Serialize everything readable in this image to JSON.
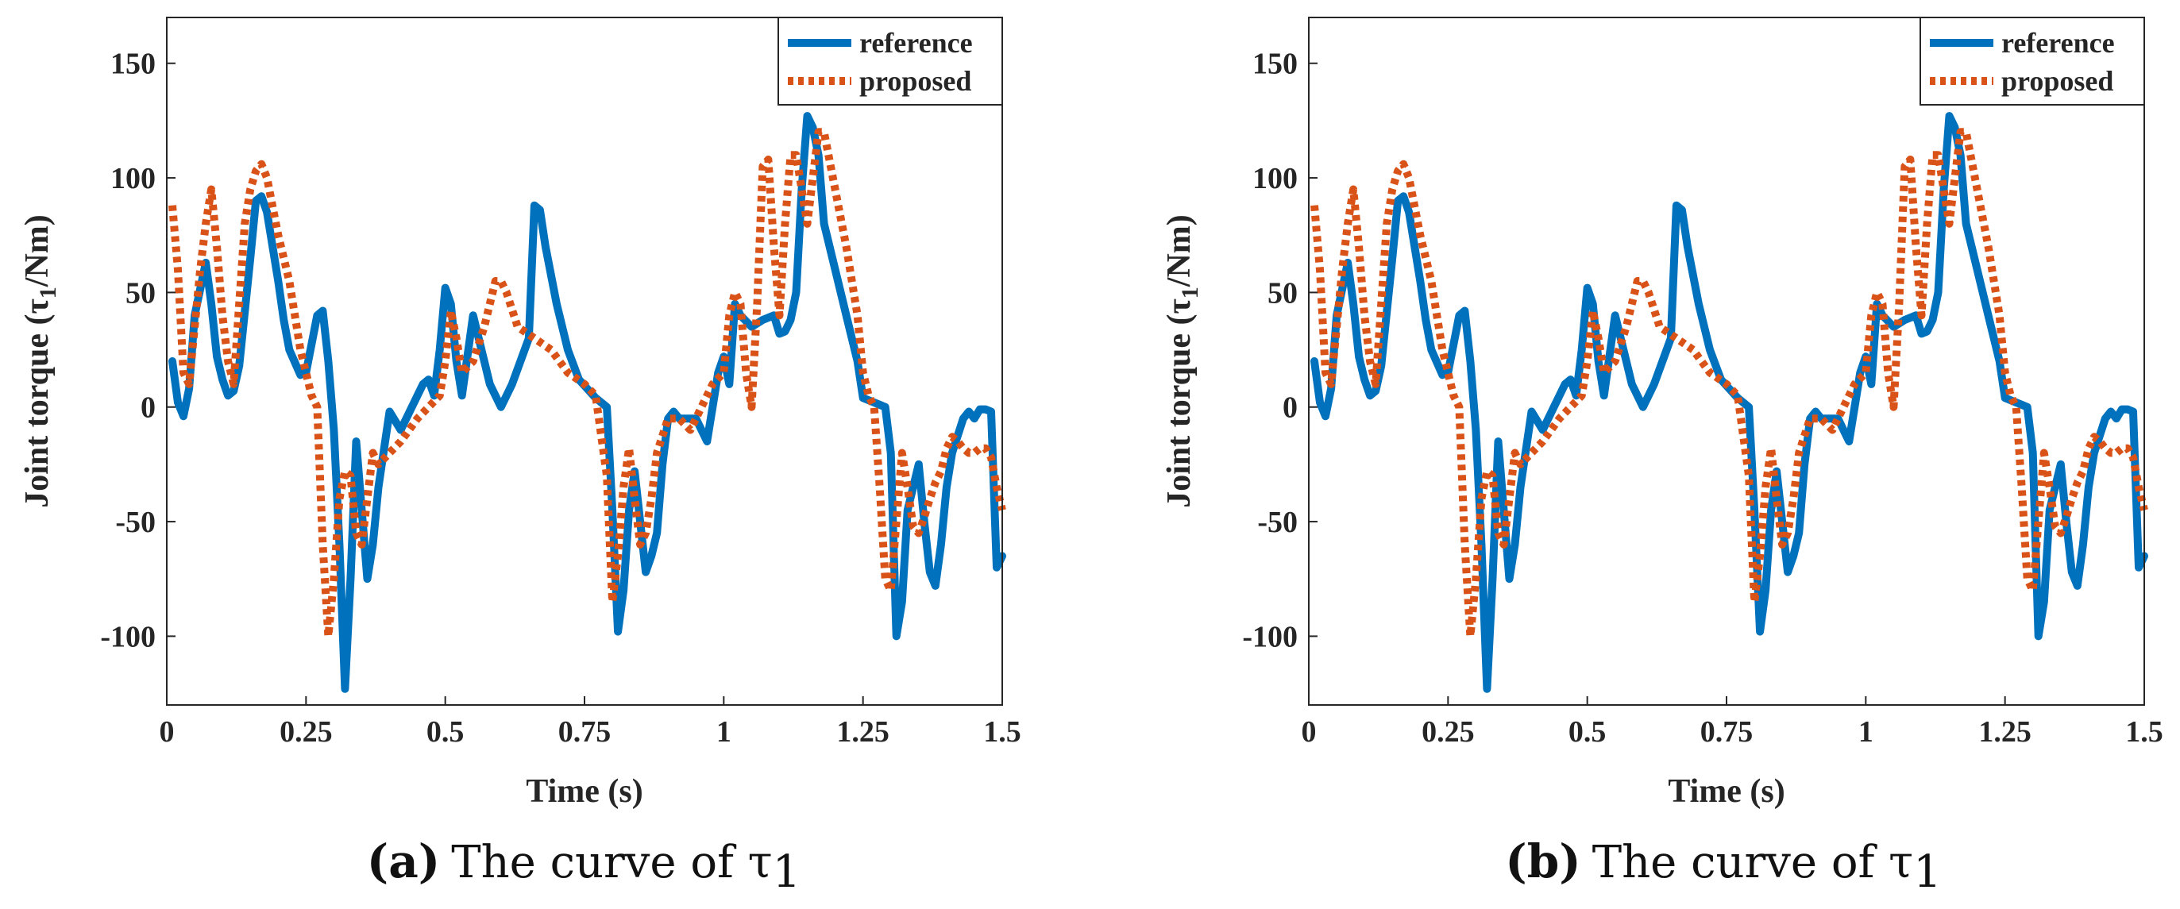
{
  "chart_data": [
    {
      "type": "line",
      "panel_letter": "(a)",
      "caption": "The curve of τ",
      "caption_sub": "1",
      "xlabel": "Time (s)",
      "ylabel_prefix": "Joint torque (τ",
      "ylabel_sub": "1",
      "ylabel_suffix": "/Nm)",
      "xlim": [
        0,
        1.5
      ],
      "ylim": [
        -130,
        170
      ],
      "xticks": [
        0,
        0.25,
        0.5,
        0.75,
        1,
        1.25,
        1.5
      ],
      "xtick_labels": [
        "0",
        "0.25",
        "0.5",
        "0.75",
        "1",
        "1.25",
        "1.5"
      ],
      "yticks": [
        -100,
        -50,
        0,
        50,
        100,
        150
      ],
      "ytick_labels": [
        "-100",
        "-50",
        "0",
        "50",
        "100",
        "150"
      ],
      "grid": false,
      "legend_position": "top-right",
      "series": [
        {
          "name": "reference",
          "color": "#0072BD",
          "style": "solid",
          "x": [
            0.01,
            0.02,
            0.03,
            0.04,
            0.05,
            0.07,
            0.08,
            0.09,
            0.1,
            0.11,
            0.12,
            0.13,
            0.15,
            0.16,
            0.17,
            0.18,
            0.2,
            0.21,
            0.22,
            0.24,
            0.25,
            0.27,
            0.28,
            0.29,
            0.3,
            0.31,
            0.32,
            0.33,
            0.34,
            0.35,
            0.36,
            0.37,
            0.38,
            0.4,
            0.42,
            0.44,
            0.46,
            0.47,
            0.48,
            0.49,
            0.5,
            0.51,
            0.52,
            0.53,
            0.55,
            0.57,
            0.58,
            0.6,
            0.62,
            0.65,
            0.66,
            0.67,
            0.68,
            0.7,
            0.72,
            0.74,
            0.77,
            0.79,
            0.8,
            0.81,
            0.82,
            0.83,
            0.84,
            0.85,
            0.86,
            0.87,
            0.88,
            0.89,
            0.9,
            0.91,
            0.92,
            0.95,
            0.97,
            0.98,
            0.99,
            1.0,
            1.01,
            1.02,
            1.03,
            1.05,
            1.07,
            1.09,
            1.1,
            1.11,
            1.12,
            1.13,
            1.14,
            1.15,
            1.16,
            1.17,
            1.18,
            1.2,
            1.22,
            1.24,
            1.25,
            1.27,
            1.28,
            1.29,
            1.3,
            1.31,
            1.32,
            1.33,
            1.35,
            1.36,
            1.37,
            1.38,
            1.39,
            1.4,
            1.41,
            1.43,
            1.44,
            1.45,
            1.46,
            1.47,
            1.48,
            1.49,
            1.5
          ],
          "y": [
            20,
            2,
            -4,
            8,
            40,
            63,
            45,
            22,
            12,
            5,
            7,
            18,
            65,
            90,
            92,
            85,
            55,
            38,
            25,
            14,
            15,
            40,
            42,
            20,
            -10,
            -60,
            -123,
            -75,
            -15,
            -45,
            -75,
            -60,
            -35,
            -2,
            -10,
            0,
            10,
            12,
            5,
            25,
            52,
            45,
            20,
            5,
            40,
            20,
            10,
            0,
            10,
            30,
            88,
            86,
            70,
            45,
            25,
            12,
            4,
            0,
            -45,
            -98,
            -80,
            -45,
            -28,
            -50,
            -72,
            -65,
            -55,
            -25,
            -5,
            -2,
            -5,
            -5,
            -15,
            0,
            15,
            22,
            10,
            45,
            40,
            35,
            38,
            40,
            32,
            33,
            38,
            50,
            95,
            127,
            122,
            110,
            80,
            60,
            40,
            20,
            4,
            2,
            1,
            0,
            -20,
            -100,
            -85,
            -45,
            -25,
            -50,
            -72,
            -78,
            -60,
            -35,
            -20,
            -5,
            -2,
            -5,
            -1,
            -1,
            -2,
            -70,
            -65
          ]
        },
        {
          "name": "proposed",
          "color": "#D95319",
          "style": "dotted",
          "x": [
            0.01,
            0.02,
            0.03,
            0.04,
            0.05,
            0.06,
            0.07,
            0.08,
            0.09,
            0.1,
            0.11,
            0.12,
            0.13,
            0.14,
            0.15,
            0.16,
            0.17,
            0.18,
            0.2,
            0.22,
            0.24,
            0.26,
            0.27,
            0.28,
            0.29,
            0.3,
            0.31,
            0.32,
            0.33,
            0.34,
            0.35,
            0.36,
            0.37,
            0.38,
            0.4,
            0.42,
            0.45,
            0.47,
            0.49,
            0.5,
            0.51,
            0.52,
            0.53,
            0.55,
            0.57,
            0.59,
            0.6,
            0.61,
            0.63,
            0.66,
            0.69,
            0.72,
            0.75,
            0.77,
            0.79,
            0.8,
            0.81,
            0.82,
            0.83,
            0.84,
            0.85,
            0.86,
            0.87,
            0.88,
            0.9,
            0.92,
            0.94,
            0.96,
            0.98,
            1.0,
            1.01,
            1.02,
            1.03,
            1.04,
            1.05,
            1.06,
            1.07,
            1.08,
            1.09,
            1.1,
            1.11,
            1.12,
            1.13,
            1.14,
            1.15,
            1.16,
            1.17,
            1.18,
            1.2,
            1.22,
            1.24,
            1.25,
            1.26,
            1.27,
            1.28,
            1.29,
            1.3,
            1.31,
            1.32,
            1.33,
            1.34,
            1.35,
            1.36,
            1.37,
            1.38,
            1.39,
            1.4,
            1.41,
            1.42,
            1.43,
            1.44,
            1.45,
            1.46,
            1.47,
            1.48,
            1.49,
            1.5
          ],
          "y": [
            88,
            60,
            15,
            10,
            35,
            60,
            80,
            95,
            70,
            40,
            20,
            10,
            45,
            80,
            95,
            103,
            106,
            100,
            75,
            55,
            25,
            5,
            0,
            -60,
            -100,
            -75,
            -40,
            -28,
            -30,
            -55,
            -60,
            -40,
            -20,
            -25,
            -20,
            -15,
            -5,
            0,
            5,
            20,
            42,
            30,
            15,
            20,
            35,
            55,
            55,
            50,
            35,
            30,
            25,
            15,
            10,
            5,
            -30,
            -85,
            -65,
            -35,
            -18,
            -40,
            -60,
            -55,
            -40,
            -20,
            -5,
            -5,
            -10,
            0,
            10,
            15,
            40,
            50,
            45,
            15,
            0,
            45,
            105,
            108,
            70,
            40,
            80,
            110,
            110,
            95,
            80,
            100,
            120,
            120,
            95,
            70,
            40,
            15,
            5,
            0,
            -35,
            -75,
            -80,
            -50,
            -20,
            -35,
            -52,
            -55,
            -48,
            -40,
            -33,
            -28,
            -18,
            -13,
            -15,
            -18,
            -20,
            -20,
            -18,
            -18,
            -22,
            -35,
            -45
          ]
        }
      ]
    },
    {
      "type": "line",
      "panel_letter": "(b)",
      "caption": "The curve of τ",
      "caption_sub": "1",
      "xlabel": "Time (s)",
      "ylabel_prefix": "Joint torque (τ",
      "ylabel_sub": "1",
      "ylabel_suffix": "/Nm)",
      "xlim": [
        0,
        1.5
      ],
      "ylim": [
        -130,
        170
      ],
      "xticks": [
        0,
        0.25,
        0.5,
        0.75,
        1,
        1.25,
        1.5
      ],
      "xtick_labels": [
        "0",
        "0.25",
        "0.5",
        "0.75",
        "1",
        "1.25",
        "1.5"
      ],
      "yticks": [
        -100,
        -50,
        0,
        50,
        100,
        150
      ],
      "ytick_labels": [
        "-100",
        "-50",
        "0",
        "50",
        "100",
        "150"
      ],
      "grid": false,
      "legend_position": "top-right",
      "series": [
        {
          "name": "reference",
          "color": "#0072BD",
          "style": "solid",
          "x": [
            0.01,
            0.02,
            0.03,
            0.04,
            0.05,
            0.07,
            0.08,
            0.09,
            0.1,
            0.11,
            0.12,
            0.13,
            0.15,
            0.16,
            0.17,
            0.18,
            0.2,
            0.21,
            0.22,
            0.24,
            0.25,
            0.27,
            0.28,
            0.29,
            0.3,
            0.31,
            0.32,
            0.33,
            0.34,
            0.35,
            0.36,
            0.37,
            0.38,
            0.4,
            0.42,
            0.44,
            0.46,
            0.47,
            0.48,
            0.49,
            0.5,
            0.51,
            0.52,
            0.53,
            0.55,
            0.57,
            0.58,
            0.6,
            0.62,
            0.65,
            0.66,
            0.67,
            0.68,
            0.7,
            0.72,
            0.74,
            0.77,
            0.79,
            0.8,
            0.81,
            0.82,
            0.83,
            0.84,
            0.85,
            0.86,
            0.87,
            0.88,
            0.89,
            0.9,
            0.91,
            0.92,
            0.95,
            0.97,
            0.98,
            0.99,
            1.0,
            1.01,
            1.02,
            1.03,
            1.05,
            1.07,
            1.09,
            1.1,
            1.11,
            1.12,
            1.13,
            1.14,
            1.15,
            1.16,
            1.17,
            1.18,
            1.2,
            1.22,
            1.24,
            1.25,
            1.27,
            1.28,
            1.29,
            1.3,
            1.31,
            1.32,
            1.33,
            1.35,
            1.36,
            1.37,
            1.38,
            1.39,
            1.4,
            1.41,
            1.43,
            1.44,
            1.45,
            1.46,
            1.47,
            1.48,
            1.49,
            1.5
          ],
          "y": [
            20,
            2,
            -4,
            8,
            40,
            63,
            45,
            22,
            12,
            5,
            7,
            18,
            65,
            90,
            92,
            85,
            55,
            38,
            25,
            14,
            15,
            40,
            42,
            20,
            -10,
            -60,
            -123,
            -75,
            -15,
            -45,
            -75,
            -60,
            -35,
            -2,
            -10,
            0,
            10,
            12,
            5,
            25,
            52,
            45,
            20,
            5,
            40,
            20,
            10,
            0,
            10,
            30,
            88,
            86,
            70,
            45,
            25,
            12,
            4,
            0,
            -45,
            -98,
            -80,
            -45,
            -28,
            -50,
            -72,
            -65,
            -55,
            -25,
            -5,
            -2,
            -5,
            -5,
            -15,
            0,
            15,
            22,
            10,
            45,
            40,
            35,
            38,
            40,
            32,
            33,
            38,
            50,
            95,
            127,
            122,
            110,
            80,
            60,
            40,
            20,
            4,
            2,
            1,
            0,
            -20,
            -100,
            -85,
            -45,
            -25,
            -50,
            -72,
            -78,
            -60,
            -35,
            -20,
            -5,
            -2,
            -5,
            -1,
            -1,
            -2,
            -70,
            -65
          ]
        },
        {
          "name": "proposed",
          "color": "#D95319",
          "style": "dotted",
          "x": [
            0.01,
            0.02,
            0.03,
            0.04,
            0.05,
            0.06,
            0.07,
            0.08,
            0.09,
            0.1,
            0.11,
            0.12,
            0.13,
            0.14,
            0.15,
            0.16,
            0.17,
            0.18,
            0.2,
            0.22,
            0.24,
            0.26,
            0.27,
            0.28,
            0.29,
            0.3,
            0.31,
            0.32,
            0.33,
            0.34,
            0.35,
            0.36,
            0.37,
            0.38,
            0.4,
            0.42,
            0.45,
            0.47,
            0.49,
            0.5,
            0.51,
            0.52,
            0.53,
            0.55,
            0.57,
            0.59,
            0.6,
            0.61,
            0.63,
            0.66,
            0.69,
            0.72,
            0.75,
            0.77,
            0.79,
            0.8,
            0.81,
            0.82,
            0.83,
            0.84,
            0.85,
            0.86,
            0.87,
            0.88,
            0.9,
            0.92,
            0.94,
            0.96,
            0.98,
            1.0,
            1.01,
            1.02,
            1.03,
            1.04,
            1.05,
            1.06,
            1.07,
            1.08,
            1.09,
            1.1,
            1.11,
            1.12,
            1.13,
            1.14,
            1.15,
            1.16,
            1.17,
            1.18,
            1.2,
            1.22,
            1.24,
            1.25,
            1.26,
            1.27,
            1.28,
            1.29,
            1.3,
            1.31,
            1.32,
            1.33,
            1.34,
            1.35,
            1.36,
            1.37,
            1.38,
            1.39,
            1.4,
            1.41,
            1.42,
            1.43,
            1.44,
            1.45,
            1.46,
            1.47,
            1.48,
            1.49,
            1.5
          ],
          "y": [
            88,
            60,
            15,
            10,
            35,
            60,
            80,
            95,
            70,
            40,
            20,
            10,
            45,
            80,
            95,
            103,
            106,
            100,
            75,
            55,
            25,
            5,
            0,
            -60,
            -100,
            -75,
            -40,
            -28,
            -30,
            -55,
            -60,
            -40,
            -20,
            -25,
            -20,
            -15,
            -5,
            0,
            5,
            20,
            42,
            30,
            15,
            20,
            35,
            55,
            55,
            50,
            35,
            30,
            25,
            15,
            10,
            5,
            -30,
            -85,
            -65,
            -35,
            -18,
            -40,
            -60,
            -55,
            -40,
            -20,
            -5,
            -5,
            -10,
            0,
            10,
            15,
            40,
            50,
            45,
            15,
            0,
            45,
            105,
            108,
            70,
            40,
            80,
            110,
            110,
            95,
            80,
            100,
            120,
            120,
            95,
            70,
            40,
            15,
            5,
            0,
            -35,
            -75,
            -80,
            -50,
            -20,
            -35,
            -52,
            -55,
            -48,
            -40,
            -33,
            -28,
            -18,
            -13,
            -15,
            -18,
            -20,
            -20,
            -18,
            -18,
            -22,
            -35,
            -45
          ]
        }
      ]
    }
  ]
}
